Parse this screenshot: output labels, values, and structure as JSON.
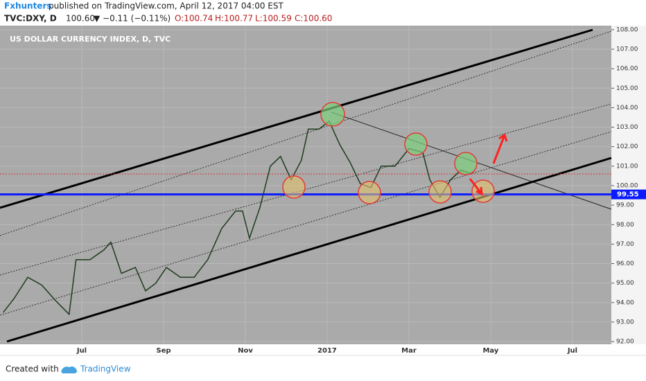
{
  "header": {
    "publisher": "Fxhunters",
    "published_note": "published on TradingView.com, April 12, 2017 04:00 EST",
    "symbol": "TVC:DXY, D",
    "last": "100.60",
    "change": "▼ −0.11 (−0.11%)",
    "open": "O:100.74",
    "high": "H:100.77",
    "low": "L:100.59",
    "close": "C:100.60"
  },
  "footer": {
    "created_with": "Created with",
    "brand": "TradingView"
  },
  "chart_data": {
    "type": "line",
    "title": "US DOLLAR CURRENCY INDEX, D, TVC",
    "x": [
      5.08,
      5.34,
      5.68,
      6.02,
      6.36,
      6.69,
      6.86,
      7.2,
      7.54,
      7.71,
      7.97,
      8.31,
      8.56,
      8.81,
      9.07,
      9.41,
      9.75,
      10.08,
      10.42,
      10.76,
      10.93,
      11.1,
      11.36,
      11.61,
      11.86,
      12.12,
      12.37,
      12.54,
      12.8,
      13.05,
      13.31,
      13.56,
      13.81,
      14.07,
      14.32,
      14.66,
      15.0,
      15.34,
      15.51,
      15.76,
      16.02,
      16.27,
      16.53
    ],
    "series": [
      {
        "name": "DXY",
        "color": "#1e3b1e",
        "values": [
          93.5,
          94.2,
          95.3,
          94.9,
          94.1,
          93.4,
          96.2,
          96.2,
          96.7,
          97.1,
          95.5,
          95.8,
          94.6,
          95.0,
          95.8,
          95.3,
          95.3,
          96.2,
          97.8,
          98.7,
          98.7,
          97.3,
          98.9,
          101.0,
          101.5,
          100.3,
          101.3,
          102.9,
          102.9,
          103.3,
          102.1,
          101.2,
          100.1,
          99.9,
          101.0,
          101.0,
          101.9,
          101.7,
          100.3,
          99.4,
          100.3,
          100.8,
          100.6
        ]
      }
    ],
    "xlim": [
      5,
      19.95
    ],
    "xticks": [
      {
        "value": 7,
        "label": "Jul"
      },
      {
        "value": 9,
        "label": "Sep"
      },
      {
        "value": 11,
        "label": "Nov"
      },
      {
        "value": 13,
        "label": "2017"
      },
      {
        "value": 15,
        "label": "Mar"
      },
      {
        "value": 17,
        "label": "May"
      },
      {
        "value": 19,
        "label": "Jul"
      }
    ],
    "ylim": [
      91.86,
      108.21
    ],
    "yticks": [
      {
        "value": 92,
        "label": "92.00"
      },
      {
        "value": 93,
        "label": "93.00"
      },
      {
        "value": 94,
        "label": "94.00"
      },
      {
        "value": 95,
        "label": "95.00"
      },
      {
        "value": 96,
        "label": "96.00"
      },
      {
        "value": 97,
        "label": "97.00"
      },
      {
        "value": 98,
        "label": "98.00"
      },
      {
        "value": 99,
        "label": "99.00"
      },
      {
        "value": 100,
        "label": "100.00"
      },
      {
        "value": 101,
        "label": "101.00"
      },
      {
        "value": 102,
        "label": "102.00"
      },
      {
        "value": 103,
        "label": "103.00"
      },
      {
        "value": 104,
        "label": "104.00"
      },
      {
        "value": 105,
        "label": "105.00"
      },
      {
        "value": 106,
        "label": "106.00"
      },
      {
        "value": 107,
        "label": "107.00"
      },
      {
        "value": 108,
        "label": "108.00"
      }
    ],
    "grid": true,
    "support_level": 99.55,
    "support_color": "#0b1bff",
    "last_price_level": 100.6,
    "last_price_color": "#e03030"
  }
}
